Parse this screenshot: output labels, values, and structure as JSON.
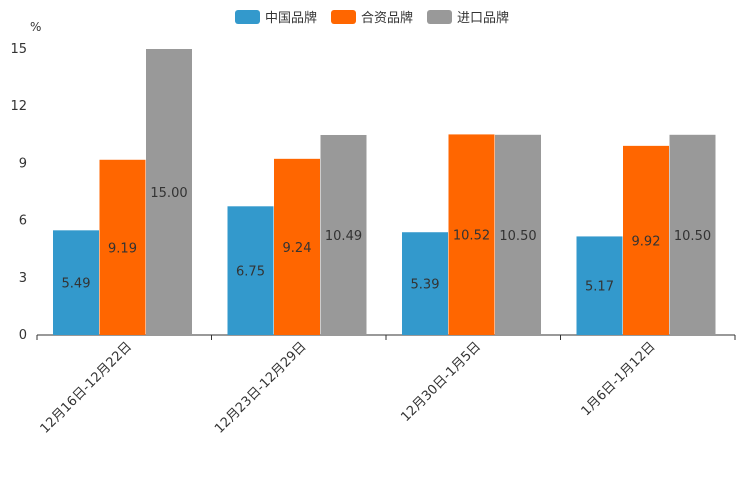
{
  "chart_data": {
    "type": "bar",
    "unit": "%",
    "categories": [
      "12月16日-12月22日",
      "12月23日-12月29日",
      "12月30日-1月5日",
      "1月6日-1月12日"
    ],
    "series": [
      {
        "name": "中国品牌",
        "color": "#3399CC",
        "values": [
          5.49,
          6.75,
          5.39,
          5.17
        ],
        "labels": [
          "5.49",
          "6.75",
          "5.39",
          "5.17"
        ]
      },
      {
        "name": "合资品牌",
        "color": "#FF6600",
        "values": [
          9.19,
          9.24,
          10.52,
          9.92
        ],
        "labels": [
          "9.19",
          "9.24",
          "10.52",
          "9.92"
        ]
      },
      {
        "name": "进口品牌",
        "color": "#999999",
        "values": [
          15.0,
          10.49,
          10.5,
          10.5
        ],
        "labels": [
          "15.00",
          "10.49",
          "10.50",
          "10.50"
        ]
      }
    ],
    "yticks": [
      "0",
      "3",
      "6",
      "9",
      "12",
      "15"
    ],
    "ylim": [
      0,
      15
    ],
    "legend_position": "top"
  }
}
